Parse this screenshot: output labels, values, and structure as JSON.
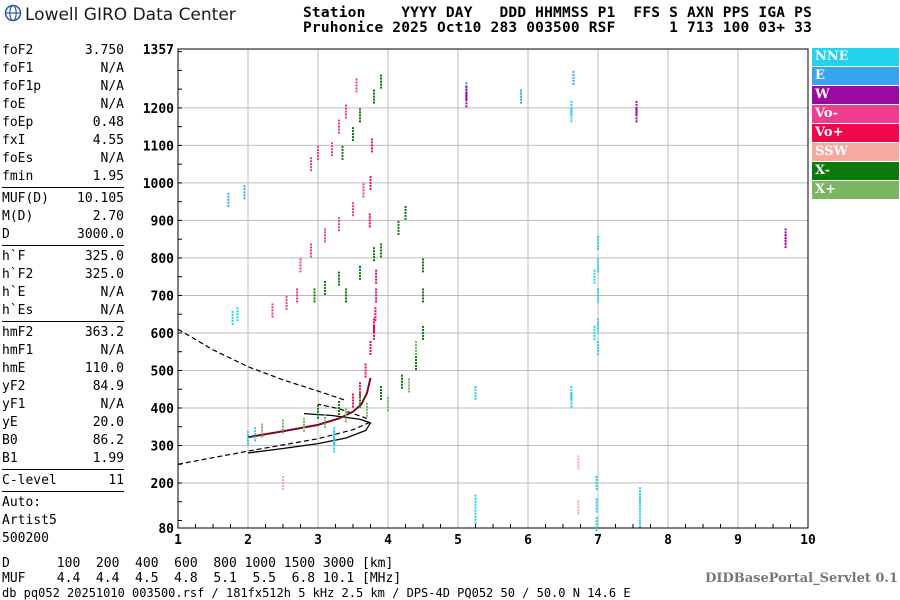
{
  "logo": {
    "text": "Lowell GIRO Data Center"
  },
  "header": {
    "line1": "Station    YYYY DAY   DDD HHMMSS P1  FFS S AXN PPS IGA PS",
    "line2": "Pruhonice 2025 Oct10 283 003500 RSF      1 713 100 03+ 33"
  },
  "params": [
    {
      "label": "foF2",
      "value": "3.750"
    },
    {
      "label": "foF1",
      "value": "N/A"
    },
    {
      "label": "foF1p",
      "value": "N/A"
    },
    {
      "label": "foE",
      "value": "N/A"
    },
    {
      "label": "foEp",
      "value": "0.48"
    },
    {
      "label": "fxI",
      "value": "4.55"
    },
    {
      "label": "foEs",
      "value": "N/A"
    },
    {
      "label": "fmin",
      "value": "1.95"
    },
    {
      "sep": true
    },
    {
      "label": "MUF(D)",
      "value": "10.105"
    },
    {
      "label": "M(D)",
      "value": "2.70"
    },
    {
      "label": "D",
      "value": "3000.0"
    },
    {
      "sep": true
    },
    {
      "label": "h`F",
      "value": "325.0"
    },
    {
      "label": "h`F2",
      "value": "325.0"
    },
    {
      "label": "h`E",
      "value": "N/A"
    },
    {
      "label": "h`Es",
      "value": "N/A"
    },
    {
      "sep": true
    },
    {
      "label": "hmF2",
      "value": "363.2"
    },
    {
      "label": "hmF1",
      "value": "N/A"
    },
    {
      "label": "hmE",
      "value": "110.0"
    },
    {
      "label": "yF2",
      "value": "84.9"
    },
    {
      "label": "yF1",
      "value": "N/A"
    },
    {
      "label": "yE",
      "value": "20.0"
    },
    {
      "label": "B0",
      "value": "86.2"
    },
    {
      "label": "B1",
      "value": "1.99"
    },
    {
      "sep": true
    },
    {
      "label": "C-level",
      "value": "11"
    },
    {
      "sep": true
    },
    {
      "label": "Auto:",
      "value": ""
    },
    {
      "label": "Artist5",
      "value": ""
    },
    {
      "label": "500200",
      "value": ""
    }
  ],
  "legend": [
    {
      "label": "NNE",
      "color": "#22d3ee"
    },
    {
      "label": "E",
      "color": "#3aa3f0"
    },
    {
      "label": "W",
      "color": "#9a0aa3"
    },
    {
      "label": "Vo-",
      "color": "#ee3c8e"
    },
    {
      "label": "Vo+",
      "color": "#f0074c"
    },
    {
      "label": "SSW",
      "color": "#f5a9a1"
    },
    {
      "label": "X-",
      "color": "#0a7a0a"
    },
    {
      "label": "X+",
      "color": "#7ab662"
    }
  ],
  "bottom": {
    "d_line": "D      100  200  400  600  800 1000 1500 3000 [km]",
    "muf_line": "MUF    4.4  4.4  4.5  4.8  5.1  5.5  6.8 10.1 [MHz]"
  },
  "footer": "db pq052 20251010 003500.rsf / 181fx512h 5 kHz 2.5 km / DPS-4D PQ052 50 / 50.0 N 14.6 E",
  "servlet": "DIDBasePortal_Servlet 0.1",
  "chart_data": {
    "type": "scatter",
    "xlim": [
      1,
      10
    ],
    "ylim": [
      80,
      1357
    ],
    "xticks": [
      "1",
      "2",
      "3",
      "4",
      "5",
      "6",
      "7",
      "8",
      "9",
      "10"
    ],
    "yticks": [
      "80",
      "200",
      "300",
      "400",
      "500",
      "600",
      "700",
      "800",
      "900",
      "1000",
      "1100",
      "1200",
      "1357"
    ],
    "grid": true,
    "series": [
      {
        "name": "NNE",
        "points": [
          [
            3.23,
            300
          ],
          [
            3.23,
            320
          ],
          [
            3.23,
            330
          ],
          [
            6.62,
            1180
          ],
          [
            6.62,
            1200
          ],
          [
            6.62,
            440
          ],
          [
            6.62,
            420
          ],
          [
            7.0,
            560
          ],
          [
            7.0,
            620
          ],
          [
            7.0,
            700
          ],
          [
            7.0,
            780
          ],
          [
            7.0,
            840
          ],
          [
            6.95,
            600
          ],
          [
            6.95,
            750
          ],
          [
            7.6,
            100
          ],
          [
            7.6,
            140
          ],
          [
            7.6,
            170
          ],
          [
            6.98,
            90
          ],
          [
            6.98,
            140
          ],
          [
            6.98,
            200
          ],
          [
            5.25,
            150
          ],
          [
            5.25,
            110
          ],
          [
            5.25,
            440
          ],
          [
            2.0,
            320
          ],
          [
            2.1,
            330
          ],
          [
            1.78,
            640
          ],
          [
            1.85,
            650
          ]
        ]
      },
      {
        "name": "E",
        "points": [
          [
            5.12,
            1250
          ],
          [
            5.9,
            1230
          ],
          [
            6.65,
            1280
          ],
          [
            1.95,
            975
          ],
          [
            1.72,
            955
          ]
        ]
      },
      {
        "name": "W",
        "points": [
          [
            5.12,
            1220
          ],
          [
            5.12,
            1240
          ],
          [
            7.55,
            1180
          ],
          [
            7.55,
            1200
          ],
          [
            9.68,
            860
          ],
          [
            9.68,
            845
          ]
        ]
      },
      {
        "name": "Vo-",
        "points": [
          [
            3.2,
            1090
          ],
          [
            3.3,
            1150
          ],
          [
            3.4,
            1190
          ],
          [
            3.55,
            1260
          ],
          [
            2.9,
            1050
          ],
          [
            3.0,
            1080
          ],
          [
            2.75,
            780
          ],
          [
            2.9,
            820
          ],
          [
            3.1,
            860
          ],
          [
            3.3,
            890
          ],
          [
            3.5,
            930
          ],
          [
            3.65,
            980
          ],
          [
            2.35,
            660
          ],
          [
            2.55,
            680
          ],
          [
            2.7,
            700
          ]
        ]
      },
      {
        "name": "Vo+",
        "points": [
          [
            3.5,
            420
          ],
          [
            3.6,
            450
          ],
          [
            3.68,
            500
          ],
          [
            3.75,
            560
          ],
          [
            3.8,
            600
          ],
          [
            3.82,
            650
          ],
          [
            3.83,
            700
          ],
          [
            3.74,
            900
          ],
          [
            3.75,
            1000
          ],
          [
            3.77,
            1100
          ],
          [
            3.8,
            620
          ],
          [
            3.83,
            750
          ]
        ]
      },
      {
        "name": "SSW",
        "points": [
          [
            6.72,
            135
          ],
          [
            6.72,
            255
          ],
          [
            2.5,
            200
          ]
        ]
      },
      {
        "name": "X-",
        "points": [
          [
            3.5,
            1130
          ],
          [
            3.6,
            1180
          ],
          [
            3.8,
            1230
          ],
          [
            3.9,
            1270
          ],
          [
            3.35,
            1080
          ],
          [
            3.4,
            700
          ],
          [
            3.6,
            760
          ],
          [
            3.8,
            810
          ],
          [
            3.9,
            820
          ],
          [
            4.15,
            880
          ],
          [
            4.25,
            920
          ],
          [
            3.0,
            390
          ],
          [
            3.3,
            400
          ],
          [
            3.6,
            420
          ],
          [
            3.9,
            440
          ],
          [
            4.2,
            470
          ],
          [
            4.4,
            520
          ],
          [
            4.5,
            600
          ],
          [
            4.5,
            700
          ],
          [
            4.5,
            780
          ],
          [
            2.95,
            700
          ],
          [
            3.1,
            720
          ],
          [
            3.3,
            745
          ]
        ]
      },
      {
        "name": "X+",
        "points": [
          [
            2.2,
            340
          ],
          [
            2.5,
            350
          ],
          [
            2.8,
            355
          ],
          [
            3.1,
            365
          ],
          [
            3.4,
            380
          ],
          [
            3.7,
            395
          ],
          [
            4.0,
            410
          ],
          [
            4.3,
            460
          ],
          [
            4.4,
            560
          ]
        ]
      }
    ]
  }
}
